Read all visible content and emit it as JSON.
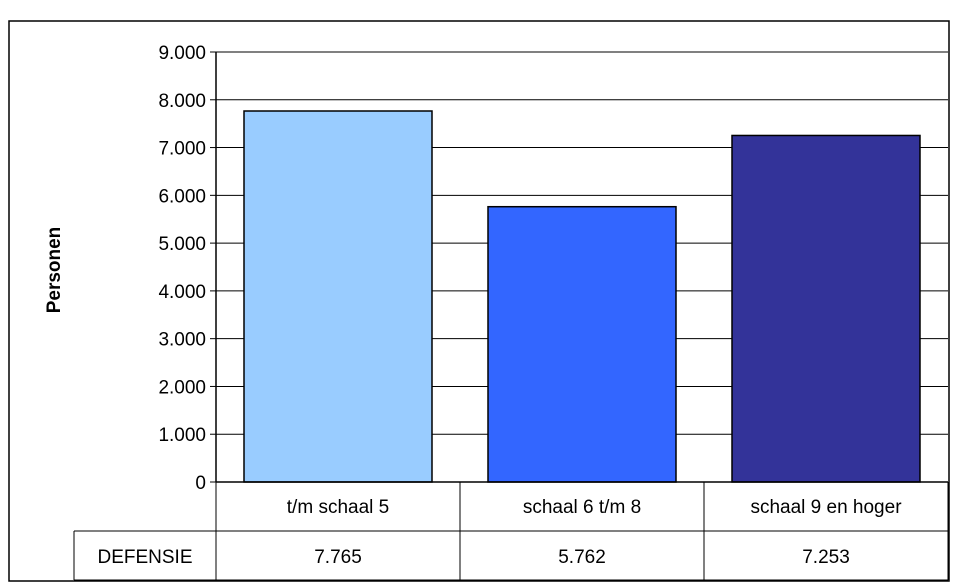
{
  "chart_data": {
    "type": "bar",
    "ylabel": "Personen",
    "categories": [
      "t/m schaal 5",
      "schaal 6 t/m 8",
      "schaal 9 en hoger"
    ],
    "series": [
      {
        "name": "DEFENSIE",
        "values": [
          7765,
          5762,
          7253
        ],
        "value_labels": [
          "7.765",
          "5.762",
          "7.253"
        ]
      }
    ],
    "ylim": [
      0,
      9000
    ],
    "yticks": [
      0,
      1000,
      2000,
      3000,
      4000,
      5000,
      6000,
      7000,
      8000,
      9000
    ],
    "ytick_labels": [
      "0",
      "1.000",
      "2.000",
      "3.000",
      "4.000",
      "5.000",
      "6.000",
      "7.000",
      "8.000",
      "9.000"
    ],
    "grid": true,
    "data_table": true,
    "colors": [
      "#99ccff",
      "#3366ff",
      "#333399"
    ],
    "gridline_color": "#000000"
  }
}
